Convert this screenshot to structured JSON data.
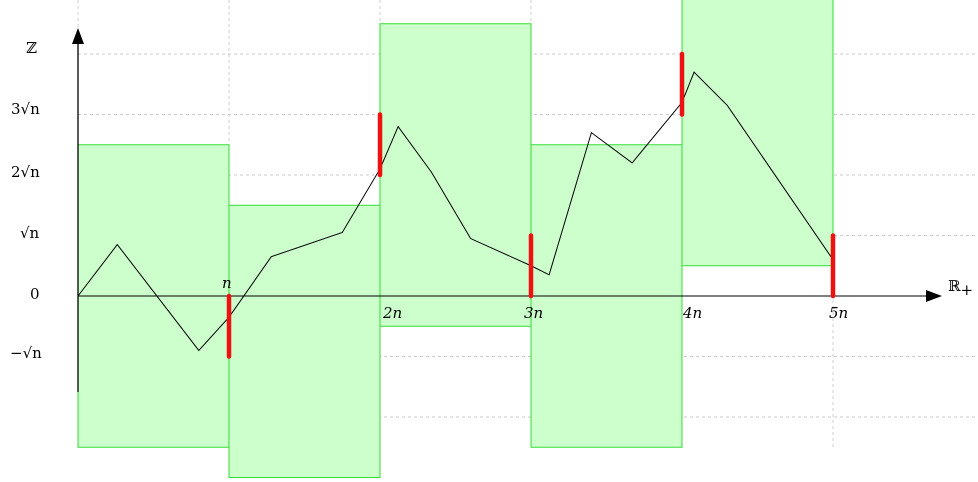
{
  "labels": {
    "y_axis": "ℤ",
    "x_axis": "ℝ",
    "x_axis_sub": "+",
    "zero": "0",
    "neg_sqrt_n": "−√n",
    "sqrt_n": "√n",
    "two_sqrt_n": "2√n",
    "three_sqrt_n": "3√n",
    "n": "n",
    "two_n": "2n",
    "three_n": "3n",
    "four_n": "4n",
    "five_n": "5n"
  },
  "colors": {
    "box_fill": "#ccffcc",
    "box_stroke": "#33dd33",
    "segment": "#ee1111",
    "path": "#000000",
    "grid": "#bbbbbb"
  },
  "boxes": [
    {
      "x0": 0,
      "x1": 1,
      "y0": -2.5,
      "y1": 2.5
    },
    {
      "x0": 1,
      "x1": 2,
      "y0": -3.0,
      "y1": 1.5
    },
    {
      "x0": 2,
      "x1": 3,
      "y0": -0.5,
      "y1": 4.5
    },
    {
      "x0": 3,
      "x1": 4,
      "y0": -2.5,
      "y1": 2.5
    },
    {
      "x0": 4,
      "x1": 5,
      "y0": 0.5,
      "y1": 5.0
    }
  ],
  "red_segments": [
    {
      "x": 1,
      "y0": -1.0,
      "y1": 0.0
    },
    {
      "x": 2,
      "y0": 2.0,
      "y1": 3.0
    },
    {
      "x": 3,
      "y0": 0.0,
      "y1": 1.0
    },
    {
      "x": 4,
      "y0": 3.0,
      "y1": 4.0
    },
    {
      "x": 5,
      "y0": 0.0,
      "y1": 1.0
    }
  ],
  "walk": [
    [
      0,
      0.0
    ],
    [
      0.26,
      0.85
    ],
    [
      0.8,
      -0.9
    ],
    [
      1.0,
      -0.35
    ],
    [
      1.28,
      0.65
    ],
    [
      1.75,
      1.05
    ],
    [
      2.0,
      2.1
    ],
    [
      2.12,
      2.8
    ],
    [
      2.34,
      2.05
    ],
    [
      2.6,
      0.95
    ],
    [
      3.0,
      0.5
    ],
    [
      3.12,
      0.35
    ],
    [
      3.4,
      2.7
    ],
    [
      3.67,
      2.2
    ],
    [
      4.0,
      3.2
    ],
    [
      4.08,
      3.7
    ],
    [
      4.3,
      3.15
    ],
    [
      5.0,
      0.6
    ]
  ]
}
